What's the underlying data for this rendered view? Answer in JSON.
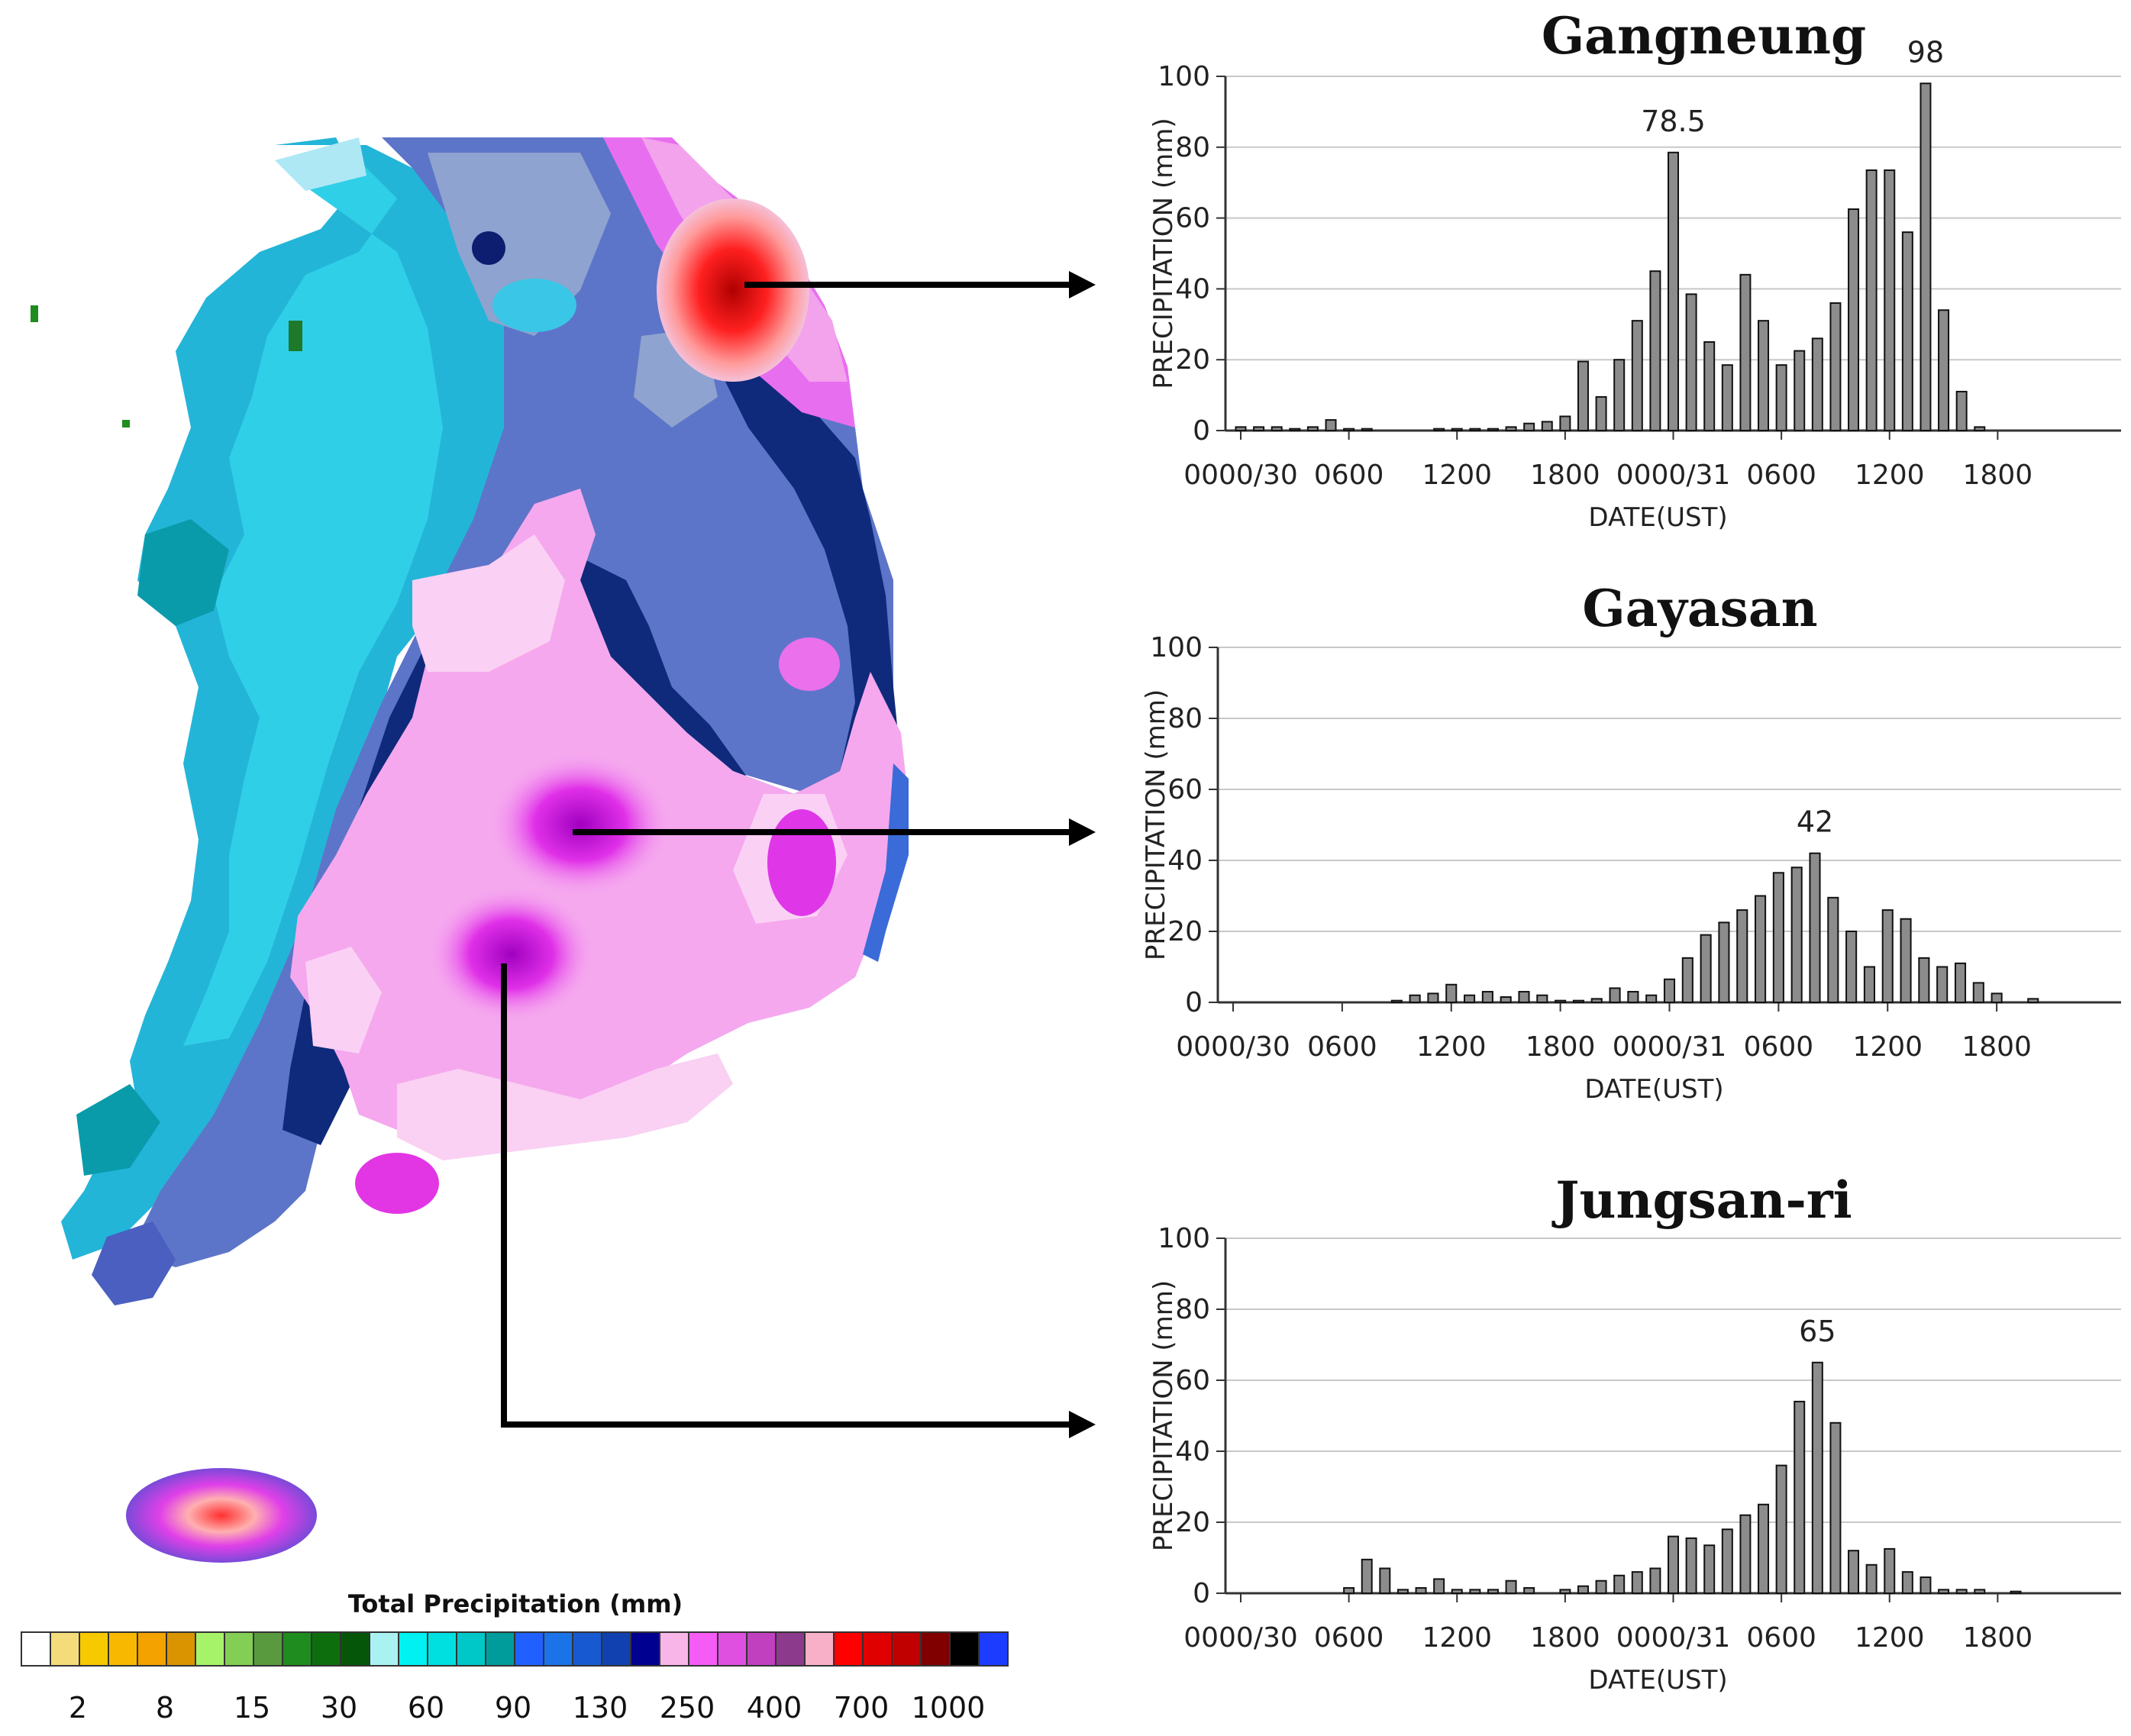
{
  "legend": {
    "title": "Total Precipitation (mm)",
    "colors": [
      "#ffffff",
      "#f5dc7a",
      "#f7c900",
      "#f8b800",
      "#f3a200",
      "#d99400",
      "#a6f36a",
      "#83cf55",
      "#5a9a3f",
      "#1e8c1e",
      "#0d6e0d",
      "#06560a",
      "#aaf2f2",
      "#00f1f1",
      "#00e0e0",
      "#00c8c8",
      "#009c9c",
      "#2060ff",
      "#1a73e8",
      "#1659d0",
      "#1140b0",
      "#000090",
      "#f8b5e8",
      "#f55bf5",
      "#e050e0",
      "#c040c0",
      "#8c3a8c",
      "#f8b0c8",
      "#ff0000",
      "#e00000",
      "#c00000",
      "#800000",
      "#000000",
      "#1c3cff"
    ],
    "ticks": [
      "2",
      "8",
      "15",
      "30",
      "60",
      "90",
      "130",
      "250",
      "400",
      "700",
      "1000"
    ]
  },
  "chart_data": [
    {
      "type": "bar",
      "title": "Gangneung",
      "xlabel": "DATE(UST)",
      "ylabel": "PRECIPITATION (mm)",
      "ylim": [
        0,
        100
      ],
      "yticks": [
        "0",
        "20",
        "40",
        "60",
        "80",
        "100"
      ],
      "xtick_labels": [
        "0000/30",
        "0600",
        "1200",
        "1800",
        "0000/31",
        "0600",
        "1200",
        "1800"
      ],
      "x_hour_range": [
        0,
        48
      ],
      "grid": true,
      "bars": [
        {
          "h": 0,
          "v": 1
        },
        {
          "h": 1,
          "v": 1
        },
        {
          "h": 2,
          "v": 1
        },
        {
          "h": 3,
          "v": 0.5
        },
        {
          "h": 4,
          "v": 1
        },
        {
          "h": 5,
          "v": 3
        },
        {
          "h": 6,
          "v": 0.5
        },
        {
          "h": 7,
          "v": 0.5
        },
        {
          "h": 11,
          "v": 0.5
        },
        {
          "h": 12,
          "v": 0.5
        },
        {
          "h": 13,
          "v": 0.5
        },
        {
          "h": 14,
          "v": 0.5
        },
        {
          "h": 15,
          "v": 1
        },
        {
          "h": 16,
          "v": 2
        },
        {
          "h": 17,
          "v": 2.5
        },
        {
          "h": 18,
          "v": 4
        },
        {
          "h": 19,
          "v": 19.5
        },
        {
          "h": 20,
          "v": 9.5
        },
        {
          "h": 21,
          "v": 20
        },
        {
          "h": 22,
          "v": 31
        },
        {
          "h": 23,
          "v": 45
        },
        {
          "h": 24,
          "v": 78.5
        },
        {
          "h": 25,
          "v": 38.5
        },
        {
          "h": 26,
          "v": 25
        },
        {
          "h": 27,
          "v": 18.5
        },
        {
          "h": 28,
          "v": 44
        },
        {
          "h": 29,
          "v": 31
        },
        {
          "h": 30,
          "v": 18.5
        },
        {
          "h": 31,
          "v": 22.5
        },
        {
          "h": 32,
          "v": 26
        },
        {
          "h": 33,
          "v": 36
        },
        {
          "h": 34,
          "v": 62.5
        },
        {
          "h": 35,
          "v": 73.5
        },
        {
          "h": 36,
          "v": 73.5
        },
        {
          "h": 37,
          "v": 56
        },
        {
          "h": 38,
          "v": 98
        },
        {
          "h": 39,
          "v": 34
        },
        {
          "h": 40,
          "v": 11
        },
        {
          "h": 41,
          "v": 1
        }
      ],
      "peak_labels": [
        {
          "h": 24,
          "text": "78.5"
        },
        {
          "h": 38,
          "text": "98"
        }
      ]
    },
    {
      "type": "bar",
      "title": "Gayasan",
      "xlabel": "DATE(UST)",
      "ylabel": "PRECIPITATION (mm)",
      "ylim": [
        0,
        100
      ],
      "yticks": [
        "0",
        "20",
        "40",
        "60",
        "80",
        "100"
      ],
      "xtick_labels": [
        "0000/30",
        "0600",
        "1200",
        "1800",
        "0000/31",
        "0600",
        "1200",
        "1800"
      ],
      "x_hour_range": [
        0,
        48
      ],
      "grid": true,
      "bars": [
        {
          "h": 9,
          "v": 0.5
        },
        {
          "h": 10,
          "v": 2
        },
        {
          "h": 11,
          "v": 2.5
        },
        {
          "h": 12,
          "v": 5
        },
        {
          "h": 13,
          "v": 2
        },
        {
          "h": 14,
          "v": 3
        },
        {
          "h": 15,
          "v": 1.5
        },
        {
          "h": 16,
          "v": 3
        },
        {
          "h": 17,
          "v": 2
        },
        {
          "h": 18,
          "v": 0.5
        },
        {
          "h": 19,
          "v": 0.5
        },
        {
          "h": 20,
          "v": 1
        },
        {
          "h": 21,
          "v": 4
        },
        {
          "h": 22,
          "v": 3
        },
        {
          "h": 23,
          "v": 2
        },
        {
          "h": 24,
          "v": 6.5
        },
        {
          "h": 25,
          "v": 12.5
        },
        {
          "h": 26,
          "v": 19
        },
        {
          "h": 27,
          "v": 22.5
        },
        {
          "h": 28,
          "v": 26
        },
        {
          "h": 29,
          "v": 30
        },
        {
          "h": 30,
          "v": 36.5
        },
        {
          "h": 31,
          "v": 38
        },
        {
          "h": 32,
          "v": 42
        },
        {
          "h": 33,
          "v": 29.5
        },
        {
          "h": 34,
          "v": 20
        },
        {
          "h": 35,
          "v": 10
        },
        {
          "h": 36,
          "v": 26
        },
        {
          "h": 37,
          "v": 23.5
        },
        {
          "h": 38,
          "v": 12.5
        },
        {
          "h": 39,
          "v": 10
        },
        {
          "h": 40,
          "v": 11
        },
        {
          "h": 41,
          "v": 5.5
        },
        {
          "h": 42,
          "v": 2.5
        },
        {
          "h": 44,
          "v": 1
        }
      ],
      "peak_labels": [
        {
          "h": 32,
          "text": "42"
        }
      ]
    },
    {
      "type": "bar",
      "title": "Jungsan-ri",
      "xlabel": "DATE(UST)",
      "ylabel": "PRECIPITATION (mm)",
      "ylim": [
        0,
        100
      ],
      "yticks": [
        "0",
        "20",
        "40",
        "60",
        "80",
        "100"
      ],
      "xtick_labels": [
        "0000/30",
        "0600",
        "1200",
        "1800",
        "0000/31",
        "0600",
        "1200",
        "1800"
      ],
      "x_hour_range": [
        0,
        48
      ],
      "grid": true,
      "bars": [
        {
          "h": 6,
          "v": 1.5
        },
        {
          "h": 7,
          "v": 9.5
        },
        {
          "h": 8,
          "v": 7
        },
        {
          "h": 9,
          "v": 1
        },
        {
          "h": 10,
          "v": 1.5
        },
        {
          "h": 11,
          "v": 4
        },
        {
          "h": 12,
          "v": 1
        },
        {
          "h": 13,
          "v": 1
        },
        {
          "h": 14,
          "v": 1
        },
        {
          "h": 15,
          "v": 3.5
        },
        {
          "h": 16,
          "v": 1.5
        },
        {
          "h": 18,
          "v": 1
        },
        {
          "h": 19,
          "v": 2
        },
        {
          "h": 20,
          "v": 3.5
        },
        {
          "h": 21,
          "v": 5
        },
        {
          "h": 22,
          "v": 6
        },
        {
          "h": 23,
          "v": 7
        },
        {
          "h": 24,
          "v": 16
        },
        {
          "h": 25,
          "v": 15.5
        },
        {
          "h": 26,
          "v": 13.5
        },
        {
          "h": 27,
          "v": 18
        },
        {
          "h": 28,
          "v": 22
        },
        {
          "h": 29,
          "v": 25
        },
        {
          "h": 30,
          "v": 36
        },
        {
          "h": 31,
          "v": 54
        },
        {
          "h": 32,
          "v": 65
        },
        {
          "h": 33,
          "v": 48
        },
        {
          "h": 34,
          "v": 12
        },
        {
          "h": 35,
          "v": 8
        },
        {
          "h": 36,
          "v": 12.5
        },
        {
          "h": 37,
          "v": 6
        },
        {
          "h": 38,
          "v": 4.5
        },
        {
          "h": 39,
          "v": 1
        },
        {
          "h": 40,
          "v": 1
        },
        {
          "h": 41,
          "v": 1
        },
        {
          "h": 43,
          "v": 0.5
        }
      ],
      "peak_labels": [
        {
          "h": 32,
          "text": "65"
        }
      ]
    }
  ]
}
